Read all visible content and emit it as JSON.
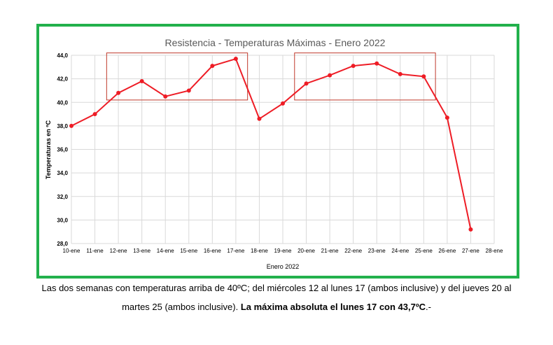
{
  "colors": {
    "frame": "#22b14c",
    "series": "#ee1c25",
    "highlight_box": "#c0392b",
    "grid": "#d9d9d9"
  },
  "chart_data": {
    "type": "line",
    "title": "Resistencia - Temperaturas Máximas - Enero 2022",
    "xlabel": "Enero 2022",
    "ylabel": "Temperaturas en ºC",
    "categories": [
      "10-ene",
      "11-ene",
      "12-ene",
      "13-ene",
      "14-ene",
      "15-ene",
      "16-ene",
      "17-ene",
      "18-ene",
      "19-ene",
      "20-ene",
      "21-ene",
      "22-ene",
      "23-ene",
      "24-ene",
      "25-ene",
      "26-ene",
      "27-ene",
      "28-ene"
    ],
    "values": [
      38.0,
      39.0,
      40.8,
      41.8,
      40.5,
      41.0,
      43.1,
      43.7,
      38.6,
      39.9,
      41.6,
      42.3,
      43.1,
      43.3,
      42.4,
      42.2,
      38.7,
      29.2,
      null
    ],
    "yticks": [
      "28,0",
      "30,0",
      "32,0",
      "34,0",
      "36,0",
      "38,0",
      "40,0",
      "42,0",
      "44,0"
    ],
    "ylim": [
      28,
      44
    ],
    "grid": true,
    "legend": "none",
    "highlight_ranges": [
      {
        "from": "12-ene",
        "to": "17-ene",
        "ymin": 40.2,
        "ymax": 44.2
      },
      {
        "from": "20-ene",
        "to": "25-ene",
        "ymin": 40.2,
        "ymax": 44.2
      }
    ]
  },
  "caption": {
    "line1": "Las dos semanas con temperaturas arriba de 40ºC; del miércoles 12 al lunes 17 (ambos inclusive) y del jueves 20 al",
    "line2_normal": "martes 25 (ambos inclusive). ",
    "line2_bold": "La máxima absoluta el lunes 17 con 43,7ºC",
    "line2_end": ".-"
  }
}
